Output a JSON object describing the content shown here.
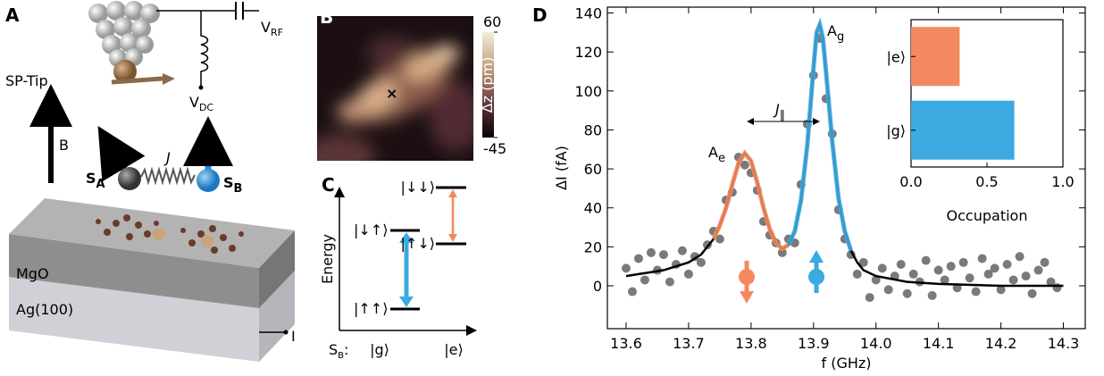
{
  "panel_a": {
    "label": "A",
    "tip": "SP-Tip",
    "v_rf": {
      "main": "V",
      "sub": "RF"
    },
    "v_dc": {
      "main": "V",
      "sub": "DC"
    },
    "field": "B",
    "spin_a": {
      "main": "S",
      "sub": "A"
    },
    "spin_b": {
      "main": "S",
      "sub": "B"
    },
    "coupling": "J",
    "layer_top": "MgO",
    "layer_bottom": "Ag(100)",
    "current": "I"
  },
  "panel_b": {
    "label": "B",
    "colorbar": {
      "label": "Δz (pm)",
      "lim": [
        -45,
        60
      ],
      "ticks": [
        60,
        -45
      ]
    }
  },
  "panel_c": {
    "label": "C",
    "ylabel": "Energy",
    "states": [
      "|↓↑⟩",
      "|↑↑⟩",
      "|↓↓⟩",
      "|↑↓⟩"
    ],
    "xlabel": {
      "main": "S",
      "sub": "B",
      "suffix": ":"
    },
    "columns": [
      "|g⟩",
      "|e⟩"
    ]
  },
  "chart_data": [
    {
      "type": "scatter",
      "label": "D",
      "xlabel": "f (GHz)",
      "ylabel": "ΔI (fA)",
      "xlim": [
        13.57,
        14.335
      ],
      "ylim": [
        -22,
        143
      ],
      "xticks": [
        13.6,
        13.7,
        13.8,
        13.9,
        {
          "value": 14,
          "label": "14.0"
        },
        14.1,
        14.2,
        14.3
      ],
      "yticks": [
        0,
        20,
        40,
        60,
        80,
        100,
        120,
        140
      ],
      "annotations": [
        {
          "main": "A",
          "sub": "e"
        },
        {
          "main": "A",
          "sub": "g"
        },
        {
          "main": "J",
          "sub": "∥"
        }
      ],
      "series": [
        {
          "type": "scatter",
          "color": "#7a7a7a",
          "x": [
            13.6,
            13.61,
            13.62,
            13.63,
            13.64,
            13.65,
            13.66,
            13.67,
            13.68,
            13.69,
            13.7,
            13.71,
            13.72,
            13.73,
            13.74,
            13.75,
            13.76,
            13.77,
            13.78,
            13.79,
            13.8,
            13.81,
            13.82,
            13.83,
            13.84,
            13.85,
            13.86,
            13.87,
            13.88,
            13.89,
            13.9,
            13.91,
            13.92,
            13.93,
            13.94,
            13.95,
            13.96,
            13.97,
            13.98,
            13.99,
            14.0,
            14.01,
            14.02,
            14.03,
            14.04,
            14.05,
            14.06,
            14.07,
            14.08,
            14.09,
            14.1,
            14.11,
            14.12,
            14.13,
            14.14,
            14.15,
            14.16,
            14.17,
            14.18,
            14.19,
            14.2,
            14.21,
            14.22,
            14.23,
            14.24,
            14.25,
            14.26,
            14.27,
            14.28,
            14.29
          ],
          "values": [
            9,
            -3,
            14,
            3,
            17,
            8,
            16,
            2,
            11,
            18,
            6,
            15,
            12,
            21,
            28,
            24,
            44,
            48,
            66,
            62,
            58,
            49,
            33,
            26,
            22,
            17,
            24,
            22,
            52,
            83,
            108,
            127,
            96,
            78,
            39,
            24,
            16,
            6,
            12,
            -6,
            3,
            9,
            -2,
            5,
            11,
            -4,
            6,
            2,
            13,
            -5,
            8,
            3,
            10,
            -1,
            12,
            4,
            -3,
            14,
            6,
            9,
            -2,
            11,
            3,
            15,
            5,
            -4,
            8,
            12,
            2,
            -1
          ]
        },
        {
          "type": "line",
          "color": "#000000",
          "x": [
            13.6,
            13.62,
            13.64,
            13.66,
            13.68,
            13.7,
            13.72,
            13.74,
            13.75,
            13.76,
            13.77,
            13.78,
            13.79,
            13.8,
            13.81,
            13.82,
            13.83,
            13.84,
            13.85,
            13.86,
            13.87,
            13.88,
            13.89,
            13.9,
            13.905,
            13.91,
            13.915,
            13.92,
            13.93,
            13.94,
            13.95,
            13.96,
            13.97,
            13.98,
            14.0,
            14.05,
            14.1,
            14.2,
            14.3
          ],
          "values": [
            5,
            6,
            7,
            8,
            10,
            12,
            16,
            24,
            31,
            40,
            52,
            63,
            68,
            64,
            53,
            40,
            29,
            22,
            19,
            21,
            28,
            44,
            72,
            112,
            130,
            134,
            127,
            110,
            74,
            45,
            28,
            18,
            12,
            8,
            5,
            2,
            1,
            0,
            0
          ]
        },
        {
          "type": "line",
          "color": "#f4895f",
          "x": [
            13.74,
            13.75,
            13.76,
            13.77,
            13.78,
            13.79,
            13.8,
            13.81,
            13.82,
            13.83,
            13.84,
            13.85,
            13.86
          ],
          "values": [
            24,
            31,
            40,
            52,
            63,
            68,
            64,
            53,
            40,
            29,
            22,
            19,
            21
          ]
        },
        {
          "type": "line",
          "color": "#3ca9e0",
          "x": [
            13.86,
            13.87,
            13.88,
            13.89,
            13.9,
            13.905,
            13.91,
            13.915,
            13.92,
            13.93,
            13.94,
            13.95,
            13.96
          ],
          "values": [
            21,
            28,
            44,
            72,
            112,
            130,
            134,
            127,
            110,
            74,
            45,
            28,
            18
          ]
        }
      ]
    },
    {
      "type": "barh",
      "xlabel": "Occupation",
      "categories": [
        "|e⟩",
        "|g⟩"
      ],
      "values": [
        0.32,
        0.68
      ],
      "colors": [
        "#f4895f",
        "#3ca9e0"
      ],
      "xlim": [
        0,
        1
      ],
      "xticks": [
        {
          "value": 0,
          "label": "0.0"
        },
        0.5,
        {
          "value": 1,
          "label": "1.0"
        }
      ]
    }
  ]
}
